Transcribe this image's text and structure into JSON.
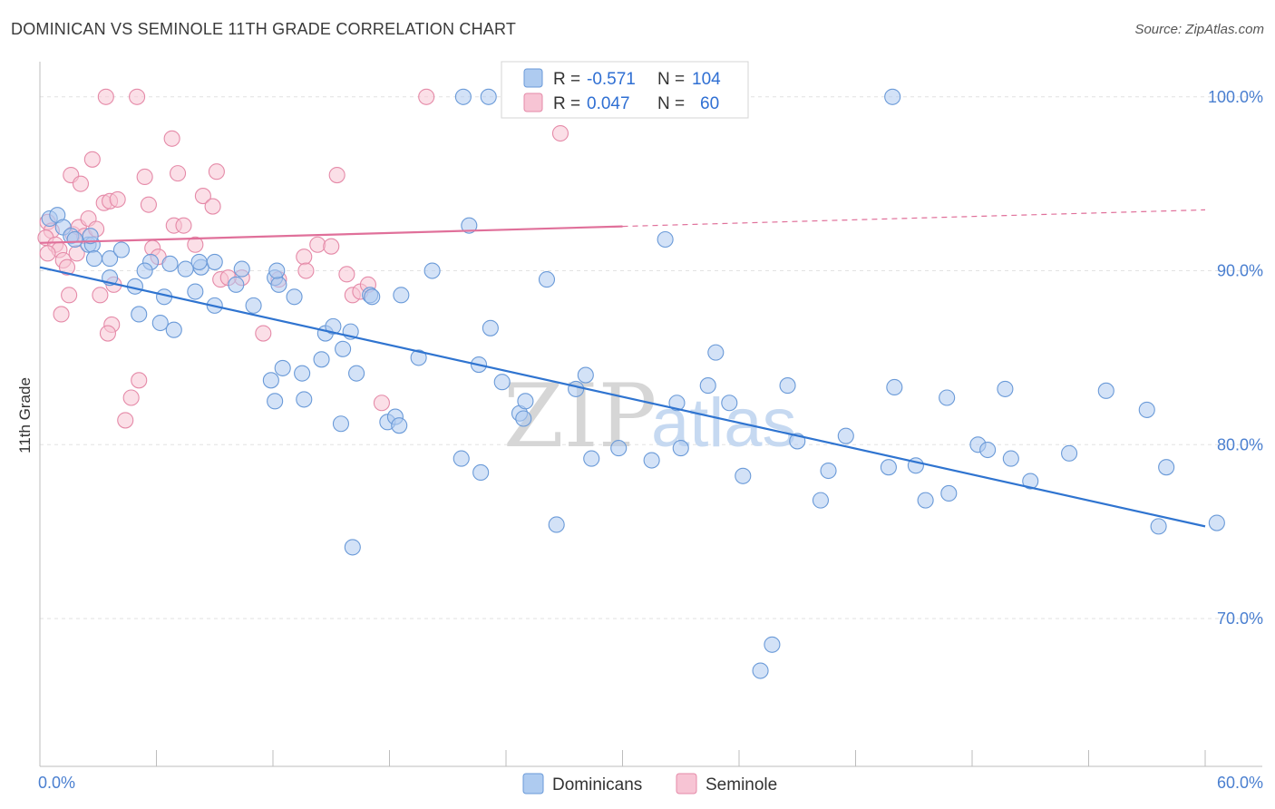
{
  "title": "DOMINICAN VS SEMINOLE 11TH GRADE CORRELATION CHART",
  "source": "Source: ZipAtlas.com",
  "watermark": {
    "zip": "ZIP",
    "atlas": "atlas"
  },
  "colors": {
    "blue_fill": "#aecbf0",
    "blue_stroke": "#6a9ad8",
    "blue_line": "#2f74d0",
    "pink_fill": "#f7c4d4",
    "pink_stroke": "#e58aa8",
    "pink_line": "#e0709a",
    "tick_text": "#4a7fd0",
    "grid": "#e2e2e2"
  },
  "legend": {
    "rows": [
      {
        "r_label": "R =",
        "r_value": "-0.571",
        "n_label": "N =",
        "n_value": "104"
      },
      {
        "r_label": "R =",
        "r_value": "0.047",
        "n_label": "N =",
        "n_value": "60"
      }
    ]
  },
  "bottom_legend": [
    "Dominicans",
    "Seminole"
  ],
  "chart_data": {
    "type": "scatter",
    "title": "DOMINICAN VS SEMINOLE 11TH GRADE CORRELATION CHART",
    "xlabel": "",
    "ylabel": "11th Grade",
    "xlim": [
      0,
      60
    ],
    "ylim": [
      61.5,
      101.5
    ],
    "x_tick_labels": [
      "0.0%",
      "60.0%"
    ],
    "y_ticks": [
      70,
      80,
      90,
      100
    ],
    "y_tick_labels": [
      "70.0%",
      "80.0%",
      "90.0%",
      "100.0%"
    ],
    "grid": true,
    "series": [
      {
        "name": "Dominicans",
        "color": "#aecbf0",
        "trend": {
          "x": [
            0,
            60
          ],
          "y": [
            90.2,
            75.3
          ]
        },
        "points": [
          [
            0.5,
            93
          ],
          [
            0.9,
            93.2
          ],
          [
            1.2,
            92.5
          ],
          [
            1.6,
            92
          ],
          [
            2.5,
            91.5
          ],
          [
            2.7,
            91.5
          ],
          [
            1.8,
            91.8
          ],
          [
            2.8,
            90.7
          ],
          [
            3.6,
            90.7
          ],
          [
            4.2,
            91.2
          ],
          [
            3.6,
            89.6
          ],
          [
            5.7,
            90.5
          ],
          [
            6.7,
            90.4
          ],
          [
            7.5,
            90.1
          ],
          [
            8.3,
            90.2
          ],
          [
            9.0,
            90.5
          ],
          [
            10.4,
            90.1
          ],
          [
            12.1,
            89.6
          ],
          [
            4.9,
            89.1
          ],
          [
            6.4,
            88.5
          ],
          [
            8.0,
            88.8
          ],
          [
            9.0,
            88.0
          ],
          [
            10.1,
            89.2
          ],
          [
            11.0,
            88.0
          ],
          [
            12.3,
            89.2
          ],
          [
            5.1,
            87.5
          ],
          [
            6.2,
            87.0
          ],
          [
            6.9,
            86.6
          ],
          [
            13.1,
            88.5
          ],
          [
            14.7,
            86.4
          ],
          [
            15.1,
            86.8
          ],
          [
            15.6,
            85.5
          ],
          [
            16.0,
            86.5
          ],
          [
            17.0,
            88.6
          ],
          [
            18.6,
            88.6
          ],
          [
            19.5,
            85.0
          ],
          [
            20.2,
            90.0
          ],
          [
            22.1,
            92.6
          ],
          [
            23.2,
            86.7
          ],
          [
            22.6,
            84.6
          ],
          [
            23.8,
            83.6
          ],
          [
            24.7,
            81.8
          ],
          [
            24.9,
            81.5
          ],
          [
            25.0,
            82.5
          ],
          [
            26.1,
            89.5
          ],
          [
            12.5,
            84.4
          ],
          [
            11.9,
            83.7
          ],
          [
            13.5,
            84.1
          ],
          [
            14.5,
            84.9
          ],
          [
            12.1,
            82.5
          ],
          [
            13.6,
            82.6
          ],
          [
            16.3,
            84.1
          ],
          [
            15.5,
            81.2
          ],
          [
            17.1,
            88.5
          ],
          [
            17.9,
            81.3
          ],
          [
            18.3,
            81.6
          ],
          [
            18.5,
            81.1
          ],
          [
            21.7,
            79.2
          ],
          [
            22.7,
            78.4
          ],
          [
            16.1,
            74.1
          ],
          [
            26.6,
            75.4
          ],
          [
            27.6,
            83.2
          ],
          [
            28.1,
            84.0
          ],
          [
            28.4,
            79.2
          ],
          [
            29.8,
            79.8
          ],
          [
            31.5,
            79.1
          ],
          [
            32.2,
            91.8
          ],
          [
            32.8,
            82.4
          ],
          [
            33.0,
            79.8
          ],
          [
            34.4,
            83.4
          ],
          [
            34.8,
            85.3
          ],
          [
            35.5,
            82.4
          ],
          [
            36.2,
            78.2
          ],
          [
            37.7,
            68.5
          ],
          [
            38.5,
            83.4
          ],
          [
            39.0,
            80.2
          ],
          [
            40.2,
            76.8
          ],
          [
            40.6,
            78.5
          ],
          [
            41.5,
            80.5
          ],
          [
            44.0,
            83.3
          ],
          [
            45.1,
            78.8
          ],
          [
            46.7,
            82.7
          ],
          [
            46.8,
            77.2
          ],
          [
            48.3,
            80.0
          ],
          [
            48.8,
            79.7
          ],
          [
            49.7,
            83.2
          ],
          [
            50.0,
            79.2
          ],
          [
            51.0,
            77.9
          ],
          [
            53.0,
            79.5
          ],
          [
            54.9,
            83.1
          ],
          [
            57.0,
            82.0
          ],
          [
            57.6,
            75.3
          ],
          [
            58.0,
            78.7
          ],
          [
            61.5,
            75.5
          ],
          [
            37.1,
            67.0
          ],
          [
            45.6,
            76.8
          ],
          [
            43.7,
            78.7
          ],
          [
            21.8,
            100.0
          ],
          [
            23.1,
            100.0
          ],
          [
            25.9,
            100.0
          ],
          [
            43.9,
            100.0
          ],
          [
            12.2,
            90.0
          ],
          [
            8.2,
            90.5
          ],
          [
            5.4,
            90.0
          ],
          [
            2.6,
            92.0
          ]
        ]
      },
      {
        "name": "Seminole",
        "color": "#f7c4d4",
        "trend": {
          "x": [
            0,
            60
          ],
          "y": [
            91.6,
            93.5
          ]
        },
        "points": [
          [
            0.4,
            92.8
          ],
          [
            0.6,
            92.3
          ],
          [
            0.3,
            91.9
          ],
          [
            0.8,
            91.5
          ],
          [
            1.0,
            91.2
          ],
          [
            0.4,
            91.0
          ],
          [
            1.2,
            90.6
          ],
          [
            1.4,
            90.2
          ],
          [
            1.7,
            92.1
          ],
          [
            2.0,
            92.5
          ],
          [
            2.3,
            92.0
          ],
          [
            2.5,
            93.0
          ],
          [
            2.9,
            92.4
          ],
          [
            3.3,
            93.9
          ],
          [
            3.6,
            94.0
          ],
          [
            4.0,
            94.1
          ],
          [
            1.6,
            95.5
          ],
          [
            2.1,
            95.0
          ],
          [
            2.7,
            96.4
          ],
          [
            5.4,
            95.4
          ],
          [
            5.6,
            93.8
          ],
          [
            5.8,
            91.3
          ],
          [
            6.1,
            90.8
          ],
          [
            6.9,
            92.6
          ],
          [
            7.1,
            95.6
          ],
          [
            7.4,
            92.6
          ],
          [
            8.0,
            91.5
          ],
          [
            8.4,
            94.3
          ],
          [
            8.9,
            93.7
          ],
          [
            9.1,
            95.7
          ],
          [
            6.8,
            97.6
          ],
          [
            3.4,
            100.0
          ],
          [
            5.0,
            100.0
          ],
          [
            19.9,
            100.0
          ],
          [
            26.8,
            97.9
          ],
          [
            13.6,
            90.8
          ],
          [
            13.7,
            90.0
          ],
          [
            14.3,
            91.5
          ],
          [
            15.0,
            91.4
          ],
          [
            16.1,
            88.6
          ],
          [
            16.5,
            88.8
          ],
          [
            16.9,
            89.2
          ],
          [
            11.5,
            86.4
          ],
          [
            15.3,
            95.5
          ],
          [
            9.3,
            89.5
          ],
          [
            3.7,
            86.9
          ],
          [
            3.1,
            88.6
          ],
          [
            1.5,
            88.6
          ],
          [
            1.1,
            87.5
          ],
          [
            3.5,
            86.4
          ],
          [
            5.1,
            83.7
          ],
          [
            4.7,
            82.7
          ],
          [
            4.4,
            81.4
          ],
          [
            17.6,
            82.4
          ],
          [
            10.4,
            89.6
          ],
          [
            9.7,
            89.6
          ],
          [
            3.8,
            89.2
          ],
          [
            1.9,
            91.0
          ],
          [
            12.3,
            89.5
          ],
          [
            15.8,
            89.8
          ]
        ]
      }
    ]
  }
}
